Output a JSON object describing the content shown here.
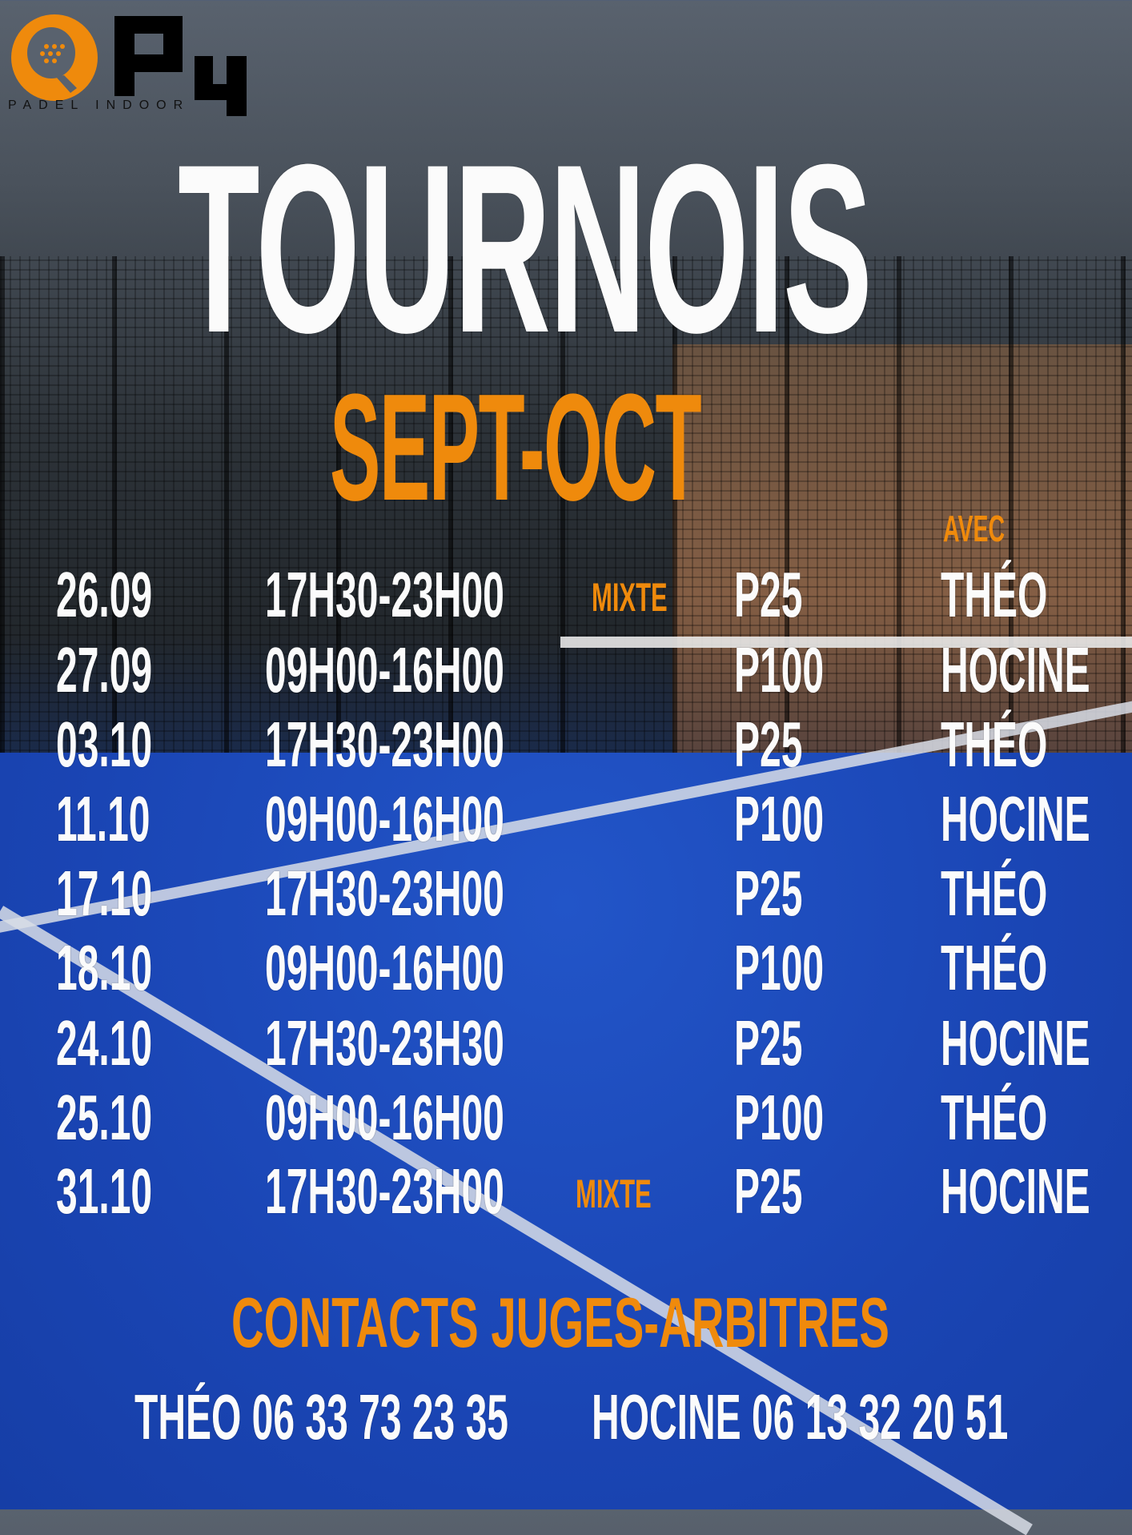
{
  "logo": {
    "brand": "P4",
    "tagline": "PADEL INDOOR"
  },
  "title": "TOURNOIS",
  "subtitle": "SEPT-OCT",
  "column_header": "AVEC",
  "rows": [
    {
      "date": "26.09",
      "time": "17H30-23H00",
      "tag": "MIXTE",
      "level": "P25",
      "judge": "THÉO"
    },
    {
      "date": "27.09",
      "time": "09H00-16H00",
      "tag": "",
      "level": "P100",
      "judge": "HOCINE"
    },
    {
      "date": "03.10",
      "time": "17H30-23H00",
      "tag": "",
      "level": "P25",
      "judge": "THÉO"
    },
    {
      "date": "11.10",
      "time": "09H00-16H00",
      "tag": "",
      "level": "P100",
      "judge": "HOCINE"
    },
    {
      "date": "17.10",
      "time": "17H30-23H00",
      "tag": "",
      "level": "P25",
      "judge": "THÉO"
    },
    {
      "date": "18.10",
      "time": "09H00-16H00",
      "tag": "",
      "level": "P100",
      "judge": "THÉO"
    },
    {
      "date": "24.10",
      "time": "17H30-23H30",
      "tag": "",
      "level": "P25",
      "judge": "HOCINE"
    },
    {
      "date": "25.10",
      "time": "09H00-16H00",
      "tag": "",
      "level": "P100",
      "judge": "THÉO"
    },
    {
      "date": "31.10",
      "time": "17H30-23H00",
      "tag": "MIXTE",
      "level": "P25",
      "judge": "HOCINE"
    }
  ],
  "contacts": {
    "heading": "CONTACTS JUGES-ARBITRES",
    "items": [
      {
        "text": "THÉO 06 33 73 23 35"
      },
      {
        "text": "HOCINE 06 13 32 20 51"
      }
    ]
  },
  "colors": {
    "accent": "#ef8a0c",
    "text": "#fbfbfb",
    "court": "#1a47b8"
  }
}
